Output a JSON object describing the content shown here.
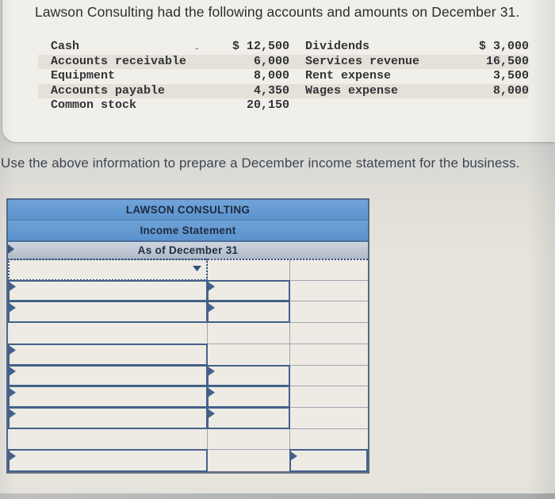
{
  "problem": {
    "title": "Lawson Consulting had the following accounts and amounts on December 31.",
    "stray_mark": "-",
    "accounts_left": [
      {
        "label": "Cash",
        "amount": "$ 12,500"
      },
      {
        "label": "Accounts receivable",
        "amount": "6,000"
      },
      {
        "label": "Equipment",
        "amount": "8,000"
      },
      {
        "label": "Accounts payable",
        "amount": "4,350"
      },
      {
        "label": "Common stock",
        "amount": "20,150"
      }
    ],
    "accounts_right": [
      {
        "label": "Dividends",
        "amount": "$ 3,000"
      },
      {
        "label": "Services revenue",
        "amount": "16,500"
      },
      {
        "label": "Rent expense",
        "amount": "3,500"
      },
      {
        "label": "Wages expense",
        "amount": "8,000"
      }
    ]
  },
  "instruction": "Use the above information to prepare a December income statement for the business.",
  "statement": {
    "company": "LAWSON CONSULTING",
    "title": "Income Statement",
    "period": "As of December 31"
  },
  "icons": {
    "dropdown_arrow": "▼",
    "cell_flag": "►"
  },
  "colors": {
    "header_blue": "#5f97d1",
    "header_gray_top": "#ced3dc",
    "header_gray_bottom": "#aeb8c6",
    "header_text": "#1d2b40",
    "cell_border_blue": "#44618b",
    "selection_navy": "#35537f",
    "grid_line": "#a0a7b2",
    "table_outer_border": "#53698c",
    "cell_bg": "#edebe4",
    "card_bg": "#f1efe9",
    "stripe_bg": "#e4e1d9",
    "page_bg": "#e6e4dd",
    "body_text": "#333336",
    "instruction_text": "#3b4654"
  }
}
